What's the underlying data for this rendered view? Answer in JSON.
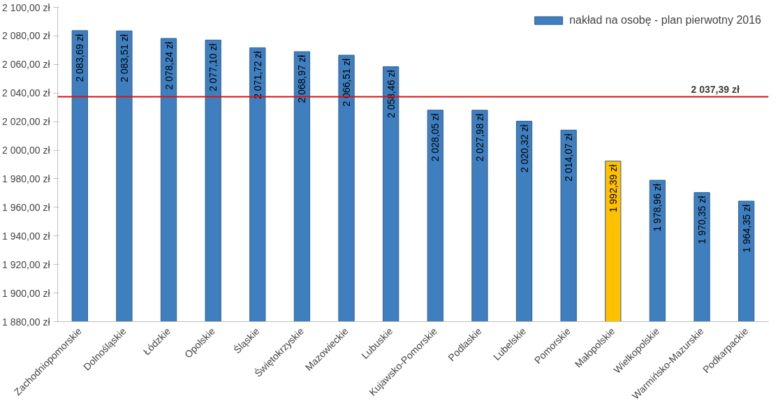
{
  "chart_data": {
    "type": "bar",
    "categories": [
      "Zachodniopomorskie",
      "Dolnośląskie",
      "Łódzkie",
      "Opolskie",
      "Śląskie",
      "Świętokrzyskie",
      "Mazowieckie",
      "Lubuskie",
      "Kujawsko-Pomorskie",
      "Podlaskie",
      "Lubelskie",
      "Pomorskie",
      "Małopolskie",
      "Wielkopolskie",
      "Warmińsko-Mazurskie",
      "Podkarpackie"
    ],
    "series": [
      {
        "name": "nakład na osobę - plan pierwotny 2016",
        "color": "#3f7fbf",
        "colors": [
          null,
          null,
          null,
          null,
          null,
          null,
          null,
          null,
          null,
          null,
          null,
          null,
          "#ffc000",
          null,
          null,
          null
        ],
        "values": [
          2083.69,
          2083.51,
          2078.24,
          2077.1,
          2071.72,
          2068.97,
          2066.51,
          2058.46,
          2028.05,
          2027.98,
          2020.32,
          2014.07,
          1992.39,
          1978.96,
          1970.35,
          1964.35
        ],
        "value_labels": [
          "2 083,69 zł",
          "2 083,51 zł",
          "2 078,24 zł",
          "2 077,10 zł",
          "2 071,72 zł",
          "2 068,97 zł",
          "2 066,51 zł",
          "2 058,46 zł",
          "2 028,05 zł",
          "2 027,98 zł",
          "2 020,32 zł",
          "2 014,07 zł",
          "1 992,39 zł",
          "1 978,96 zł",
          "1 970,35 zł",
          "1 964,35 zł"
        ]
      }
    ],
    "ylim": [
      1880,
      2100
    ],
    "yticks": [
      {
        "value": 1880,
        "label": "1 880,00 zł"
      },
      {
        "value": 1900,
        "label": "1 900,00 zł"
      },
      {
        "value": 1920,
        "label": "1 920,00 zł"
      },
      {
        "value": 1940,
        "label": "1 940,00 zł"
      },
      {
        "value": 1960,
        "label": "1 960,00 zł"
      },
      {
        "value": 1980,
        "label": "1 980,00 zł"
      },
      {
        "value": 2000,
        "label": "2 000,00 zł"
      },
      {
        "value": 2020,
        "label": "2 020,00 zł"
      },
      {
        "value": 2040,
        "label": "2 040,00 zł"
      },
      {
        "value": 2060,
        "label": "2 060,00 zł"
      },
      {
        "value": 2080,
        "label": "2 080,00 zł"
      },
      {
        "value": 2100,
        "label": "2 100,00 zł"
      }
    ],
    "ref_lines": [
      {
        "axis": "y",
        "value": 2037.39,
        "label": "2 037,39 zł",
        "color": "#e01010"
      }
    ],
    "legend": "top right",
    "grid": false
  }
}
